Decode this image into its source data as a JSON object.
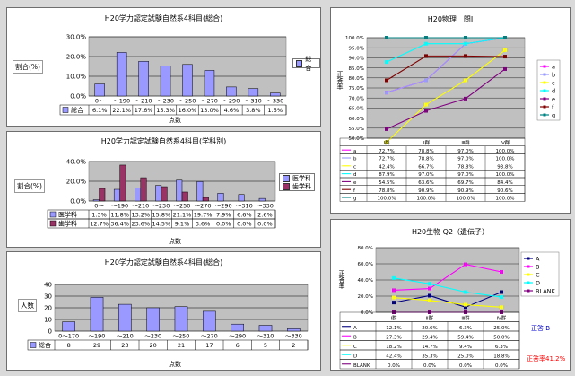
{
  "charts": {
    "c1": {
      "title": "H20学力認定試験自然系4科目(総合)",
      "ylabel": "割合(%)",
      "xlabel": "点数",
      "yticks": [
        "0.0%",
        "10.0%",
        "20.0%",
        "30.0%"
      ],
      "legend": [
        "総合"
      ]
    },
    "c2": {
      "title": "H20学力認定試験自然系4科目(学科別)",
      "ylabel": "割合(%)",
      "xlabel": "点数",
      "yticks": [
        "0.0%",
        "20.0%",
        "40.0%"
      ],
      "legend": [
        "医学科",
        "歯学科"
      ]
    },
    "c3": {
      "title": "H20学力認定試験自然系4科目(総合)",
      "ylabel": "人数",
      "xlabel": "点数",
      "yticks": [
        "0",
        "10",
        "20",
        "30",
        "40"
      ],
      "legend": [
        "総合"
      ]
    },
    "c4": {
      "title": "H20物理　問I",
      "ylabel": "正答率",
      "yticks": [
        "50.0%",
        "55.0%",
        "60.0%",
        "65.0%",
        "70.0%",
        "75.0%",
        "80.0%",
        "85.0%",
        "90.0%",
        "95.0%",
        "100.0%"
      ]
    },
    "c5": {
      "title": "H20生物 Q2（遺伝子）",
      "ylabel": "正答率",
      "yticks": [
        "0.0%",
        "20.0%",
        "40.0%",
        "60.0%",
        "80.0%"
      ],
      "note1": "正答 B",
      "note2": "正答率41.2%"
    }
  },
  "chart_data": [
    {
      "type": "bar",
      "title": "H20学力認定試験自然系4科目(総合)",
      "xlabel": "点数",
      "ylabel": "割合(%)",
      "ylim": [
        0,
        0.3
      ],
      "categories": [
        "0〜",
        "〜190",
        "〜210",
        "〜230",
        "〜250",
        "〜270",
        "〜290",
        "〜310",
        "〜330"
      ],
      "series": [
        {
          "name": "総合",
          "values": [
            0.061,
            0.221,
            0.176,
            0.153,
            0.16,
            0.13,
            0.046,
            0.038,
            0.015
          ],
          "labels": [
            "6.1%",
            "22.1%",
            "17.6%",
            "15.3%",
            "16.0%",
            "13.0%",
            "4.6%",
            "3.8%",
            "1.5%"
          ]
        }
      ],
      "colors": [
        "#9999ff"
      ]
    },
    {
      "type": "bar",
      "title": "H20学力認定試験自然系4科目(学科別)",
      "xlabel": "点数",
      "ylabel": "割合(%)",
      "ylim": [
        0,
        0.4
      ],
      "categories": [
        "0〜",
        "〜190",
        "〜210",
        "〜230",
        "〜250",
        "〜270",
        "〜290",
        "〜310",
        "〜330"
      ],
      "series": [
        {
          "name": "医学科",
          "values": [
            0.013,
            0.118,
            0.132,
            0.158,
            0.211,
            0.197,
            0.079,
            0.066,
            0.026
          ],
          "labels": [
            "1.3%",
            "11.8%",
            "13.2%",
            "15.8%",
            "21.1%",
            "19.7%",
            "7.9%",
            "6.6%",
            "2.6%"
          ]
        },
        {
          "name": "歯学科",
          "values": [
            0.127,
            0.364,
            0.236,
            0.145,
            0.091,
            0.036,
            0.0,
            0.0,
            0.0
          ],
          "labels": [
            "12.7%",
            "36.4%",
            "23.6%",
            "14.5%",
            "9.1%",
            "3.6%",
            "0.0%",
            "0.0%",
            "0.0%"
          ]
        }
      ],
      "colors": [
        "#9999ff",
        "#993366"
      ]
    },
    {
      "type": "bar",
      "title": "H20学力認定試験自然系4科目(総合)",
      "xlabel": "点数",
      "ylabel": "人数",
      "ylim": [
        0,
        40
      ],
      "categories": [
        "0〜170",
        "〜190",
        "〜210",
        "〜230",
        "〜250",
        "〜270",
        "〜290",
        "〜310",
        "〜330"
      ],
      "series": [
        {
          "name": "総合",
          "values": [
            8,
            29,
            23,
            20,
            21,
            17,
            6,
            5,
            2
          ],
          "labels": [
            "8",
            "29",
            "23",
            "20",
            "21",
            "17",
            "6",
            "5",
            "2"
          ]
        }
      ],
      "colors": [
        "#9999ff"
      ]
    },
    {
      "type": "line",
      "title": "H20物理　問I",
      "ylabel": "正答率",
      "ylim": [
        0.5,
        1.0
      ],
      "categories": [
        "Ⅰ群",
        "Ⅱ群",
        "Ⅲ群",
        "Ⅳ群"
      ],
      "series": [
        {
          "name": "a",
          "values": [
            0.727,
            0.788,
            0.97,
            1.0
          ],
          "labels": [
            "72.7%",
            "78.8%",
            "97.0%",
            "100.0%"
          ],
          "color": "#ff00ff"
        },
        {
          "name": "b",
          "values": [
            0.727,
            0.788,
            0.97,
            1.0
          ],
          "labels": [
            "72.7%",
            "78.8%",
            "97.0%",
            "100.0%"
          ],
          "color": "#9999ff"
        },
        {
          "name": "c",
          "values": [
            0.424,
            0.667,
            0.788,
            0.938
          ],
          "labels": [
            "42.4%",
            "66.7%",
            "78.8%",
            "93.8%"
          ],
          "color": "#ffff00"
        },
        {
          "name": "d",
          "values": [
            0.879,
            0.97,
            0.97,
            1.0
          ],
          "labels": [
            "87.9%",
            "97.0%",
            "97.0%",
            "100.0%"
          ],
          "color": "#00ffff"
        },
        {
          "name": "e",
          "values": [
            0.545,
            0.636,
            0.697,
            0.844
          ],
          "labels": [
            "54.5%",
            "63.6%",
            "69.7%",
            "84.4%"
          ],
          "color": "#800080"
        },
        {
          "name": "f",
          "values": [
            0.788,
            0.909,
            0.909,
            0.906
          ],
          "labels": [
            "78.8%",
            "90.9%",
            "90.9%",
            "90.6%"
          ],
          "color": "#800000"
        },
        {
          "name": "g",
          "values": [
            1.0,
            1.0,
            1.0,
            1.0
          ],
          "labels": [
            "100.0%",
            "100.0%",
            "100.0%",
            "100.0%"
          ],
          "color": "#008080"
        }
      ]
    },
    {
      "type": "line",
      "title": "H20生物 Q2（遺伝子）",
      "ylabel": "正答率",
      "ylim": [
        0,
        0.8
      ],
      "categories": [
        "Ⅰ群",
        "Ⅱ群",
        "Ⅲ群",
        "Ⅳ群"
      ],
      "series": [
        {
          "name": "A",
          "values": [
            0.121,
            0.206,
            0.063,
            0.25
          ],
          "labels": [
            "12.1%",
            "20.6%",
            "6.3%",
            "25.0%"
          ],
          "color": "#000080"
        },
        {
          "name": "B",
          "values": [
            0.273,
            0.294,
            0.594,
            0.5
          ],
          "labels": [
            "27.3%",
            "29.4%",
            "59.4%",
            "50.0%"
          ],
          "color": "#ff00ff"
        },
        {
          "name": "C",
          "values": [
            0.182,
            0.147,
            0.094,
            0.063
          ],
          "labels": [
            "18.2%",
            "14.7%",
            "9.4%",
            "6.3%"
          ],
          "color": "#ffff00"
        },
        {
          "name": "D",
          "values": [
            0.424,
            0.353,
            0.25,
            0.188
          ],
          "labels": [
            "42.4%",
            "35.3%",
            "25.0%",
            "18.8%"
          ],
          "color": "#00ffff"
        },
        {
          "name": "BLANK",
          "values": [
            0.0,
            0.0,
            0.0,
            0.0
          ],
          "labels": [
            "0.0%",
            "0.0%",
            "0.0%",
            "0.0%"
          ],
          "color": "#800080"
        }
      ]
    }
  ]
}
